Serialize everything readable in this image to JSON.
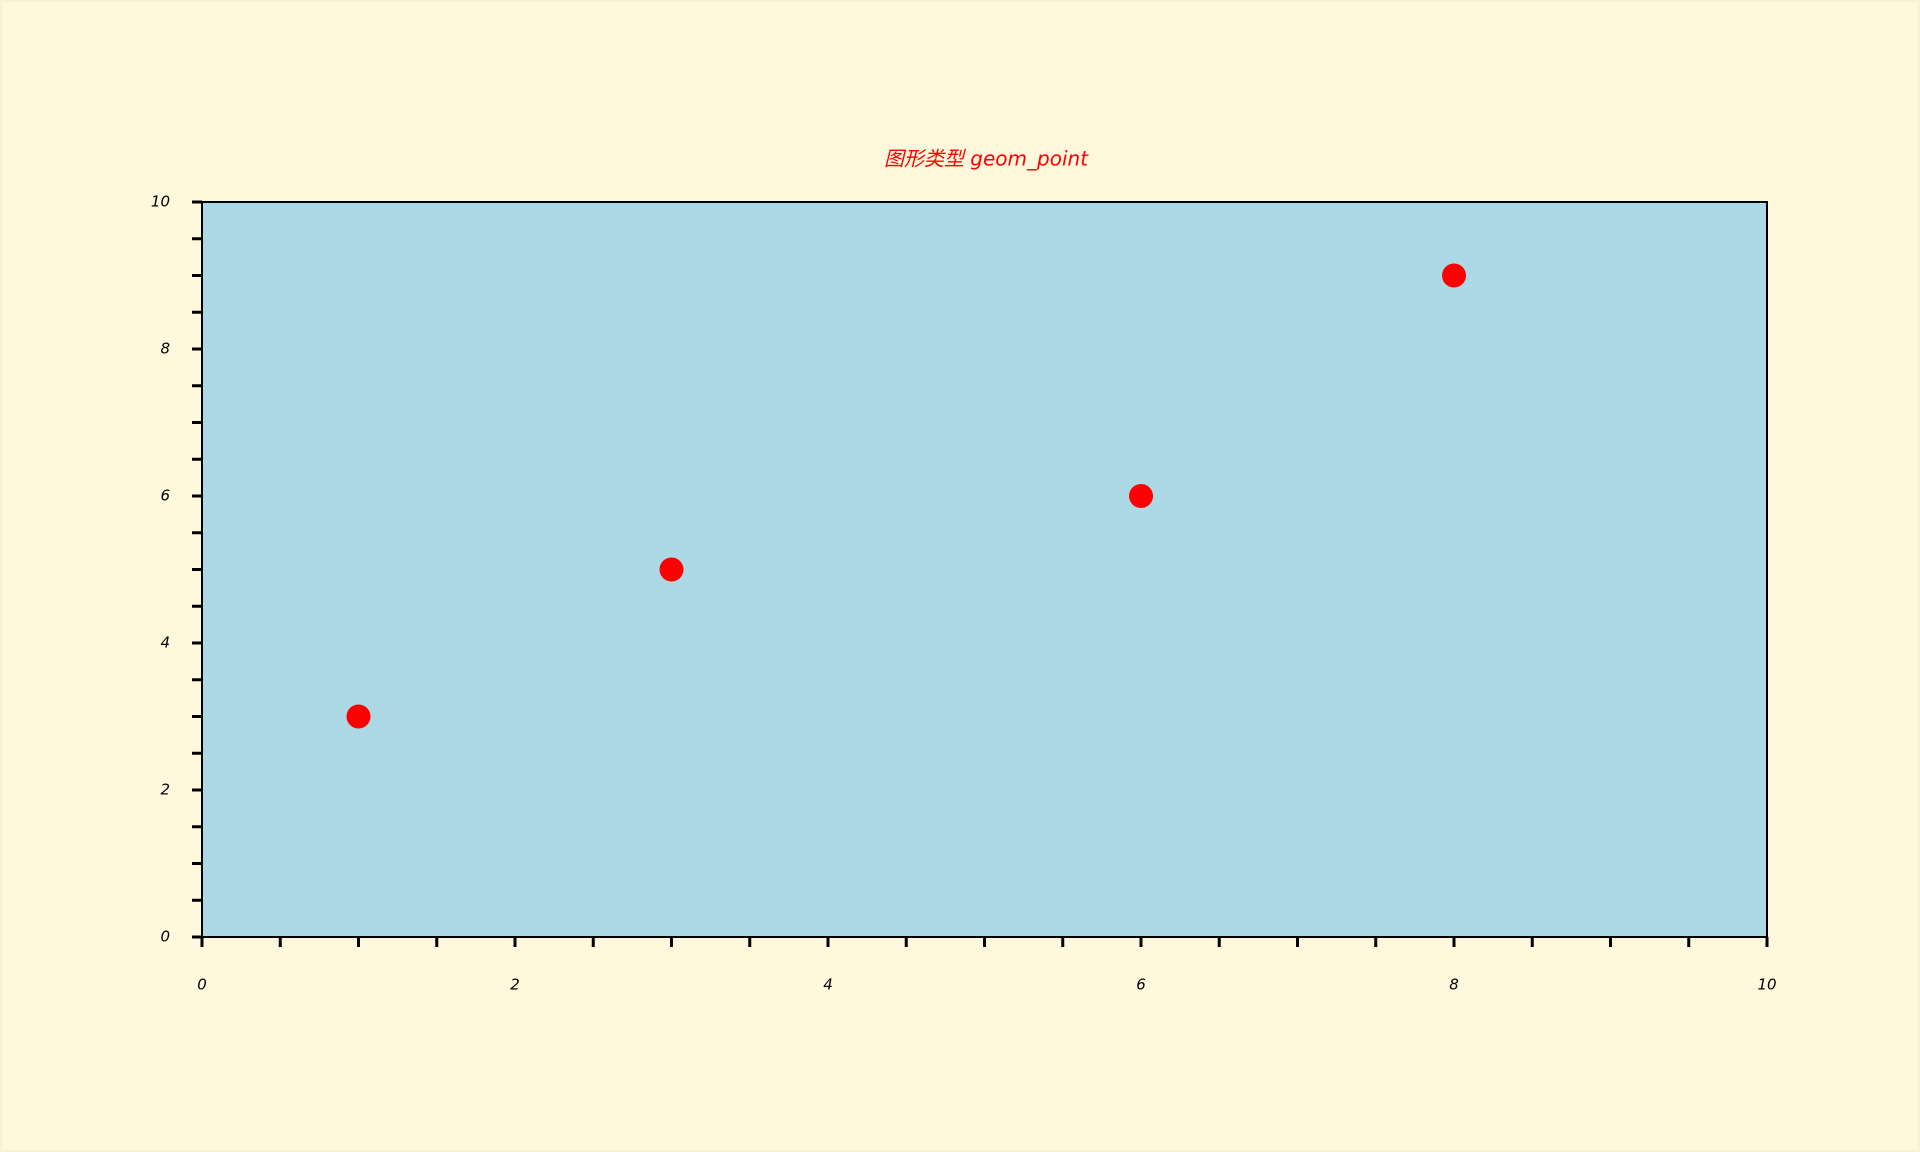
{
  "chart_data": {
    "type": "scatter",
    "title": "图形类型 geom_point",
    "x": [
      1,
      3,
      6,
      8
    ],
    "values": [
      3,
      5,
      6,
      9
    ],
    "color": "#ff0000",
    "xlim": [
      0,
      10
    ],
    "ylim": [
      0,
      10
    ],
    "xticks": [
      0,
      2,
      4,
      6,
      8,
      10
    ],
    "yticks": [
      0,
      2,
      4,
      6,
      8,
      10
    ],
    "xminorticks": [
      0.5,
      1,
      1.5,
      2.5,
      3,
      3.5,
      4.5,
      5,
      5.5,
      6.5,
      7,
      7.5,
      8.5,
      9,
      9.5
    ],
    "yminorticks": [
      0.5,
      1,
      1.5,
      2.5,
      3,
      3.5,
      4.5,
      5,
      5.5,
      6.5,
      7,
      7.5,
      8.5,
      9,
      9.5
    ],
    "plot_background": "#add8e6"
  }
}
